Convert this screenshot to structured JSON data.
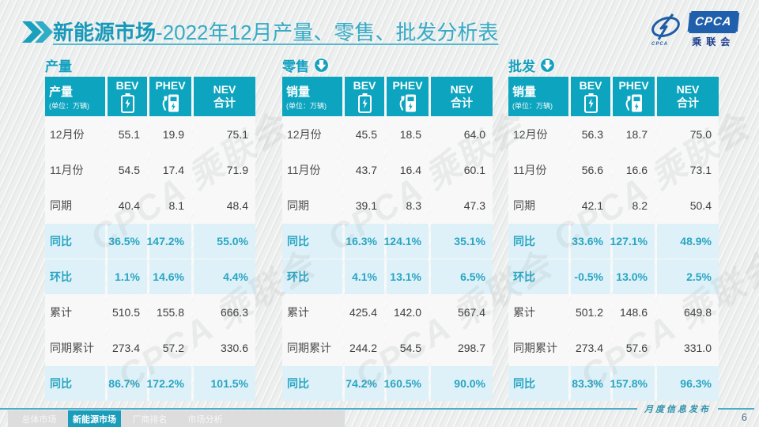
{
  "accent_colors": {
    "teal_header": "#0ca4be",
    "teal_title": "#1899b9",
    "highlight_row_bg": "#def1f8",
    "highlight_row_text": "#29a5c3",
    "logo_blue": "#1f5fab"
  },
  "header": {
    "chevron_icon": "double-chevron-right",
    "title_bold": "新能源市场",
    "title_rest": "-2022年12月产量、零售、批发分析表",
    "logo": {
      "acronym": "CPCA",
      "name_cn": "乘联会",
      "emblem_sub": "CPCA"
    }
  },
  "watermark_text": "CPCA 乘联会",
  "chart_data": [
    {
      "type": "table",
      "title": "产量",
      "arrow": false,
      "corner_label": "产量",
      "unit_label": "(单位：万辆)",
      "columns": [
        {
          "label": "BEV",
          "icon": "battery-icon"
        },
        {
          "label": "PHEV",
          "icon": "charger-icon"
        },
        {
          "label": "NEV",
          "sub": "合计"
        }
      ],
      "row_labels": [
        "12月份",
        "11月份",
        "同期",
        "同比",
        "环比",
        "累计",
        "同期累计",
        "同比"
      ],
      "rows": [
        [
          "55.1",
          "19.9",
          "75.1"
        ],
        [
          "54.5",
          "17.4",
          "71.9"
        ],
        [
          "40.4",
          "8.1",
          "48.4"
        ],
        [
          "36.5%",
          "147.2%",
          "55.0%"
        ],
        [
          "1.1%",
          "14.6%",
          "4.4%"
        ],
        [
          "510.5",
          "155.8",
          "666.3"
        ],
        [
          "273.4",
          "57.2",
          "330.6"
        ],
        [
          "86.7%",
          "172.2%",
          "101.5%"
        ]
      ],
      "highlight_rows": [
        3,
        4,
        7
      ]
    },
    {
      "type": "table",
      "title": "零售",
      "arrow": true,
      "corner_label": "销量",
      "unit_label": "(单位：万辆)",
      "columns": [
        {
          "label": "BEV",
          "icon": "battery-icon"
        },
        {
          "label": "PHEV",
          "icon": "charger-icon"
        },
        {
          "label": "NEV",
          "sub": "合计"
        }
      ],
      "row_labels": [
        "12月份",
        "11月份",
        "同期",
        "同比",
        "环比",
        "累计",
        "同期累计",
        "同比"
      ],
      "rows": [
        [
          "45.5",
          "18.5",
          "64.0"
        ],
        [
          "43.7",
          "16.4",
          "60.1"
        ],
        [
          "39.1",
          "8.3",
          "47.3"
        ],
        [
          "16.3%",
          "124.1%",
          "35.1%"
        ],
        [
          "4.1%",
          "13.1%",
          "6.5%"
        ],
        [
          "425.4",
          "142.0",
          "567.4"
        ],
        [
          "244.2",
          "54.5",
          "298.7"
        ],
        [
          "74.2%",
          "160.5%",
          "90.0%"
        ]
      ],
      "highlight_rows": [
        3,
        4,
        7
      ]
    },
    {
      "type": "table",
      "title": "批发",
      "arrow": true,
      "corner_label": "销量",
      "unit_label": "(单位：万辆)",
      "columns": [
        {
          "label": "BEV",
          "icon": "battery-icon"
        },
        {
          "label": "PHEV",
          "icon": "charger-icon"
        },
        {
          "label": "NEV",
          "sub": "合计"
        }
      ],
      "row_labels": [
        "12月份",
        "11月份",
        "同期",
        "同比",
        "环比",
        "累计",
        "同期累计",
        "同比"
      ],
      "rows": [
        [
          "56.3",
          "18.7",
          "75.0"
        ],
        [
          "56.6",
          "16.6",
          "73.1"
        ],
        [
          "42.1",
          "8.2",
          "50.4"
        ],
        [
          "33.6%",
          "127.1%",
          "48.9%"
        ],
        [
          "-0.5%",
          "13.0%",
          "2.5%"
        ],
        [
          "501.2",
          "148.6",
          "649.8"
        ],
        [
          "273.4",
          "57.6",
          "331.0"
        ],
        [
          "83.3%",
          "157.8%",
          "96.3%"
        ]
      ],
      "highlight_rows": [
        3,
        4,
        7
      ]
    }
  ],
  "footer": {
    "tabs": [
      {
        "label": "总体市场",
        "active": false
      },
      {
        "label": "新能源市场",
        "active": true
      },
      {
        "label": "厂商排名",
        "active": false
      },
      {
        "label": "市场分析",
        "active": false
      }
    ],
    "caption": "月度信息发布",
    "page_number": "6"
  }
}
